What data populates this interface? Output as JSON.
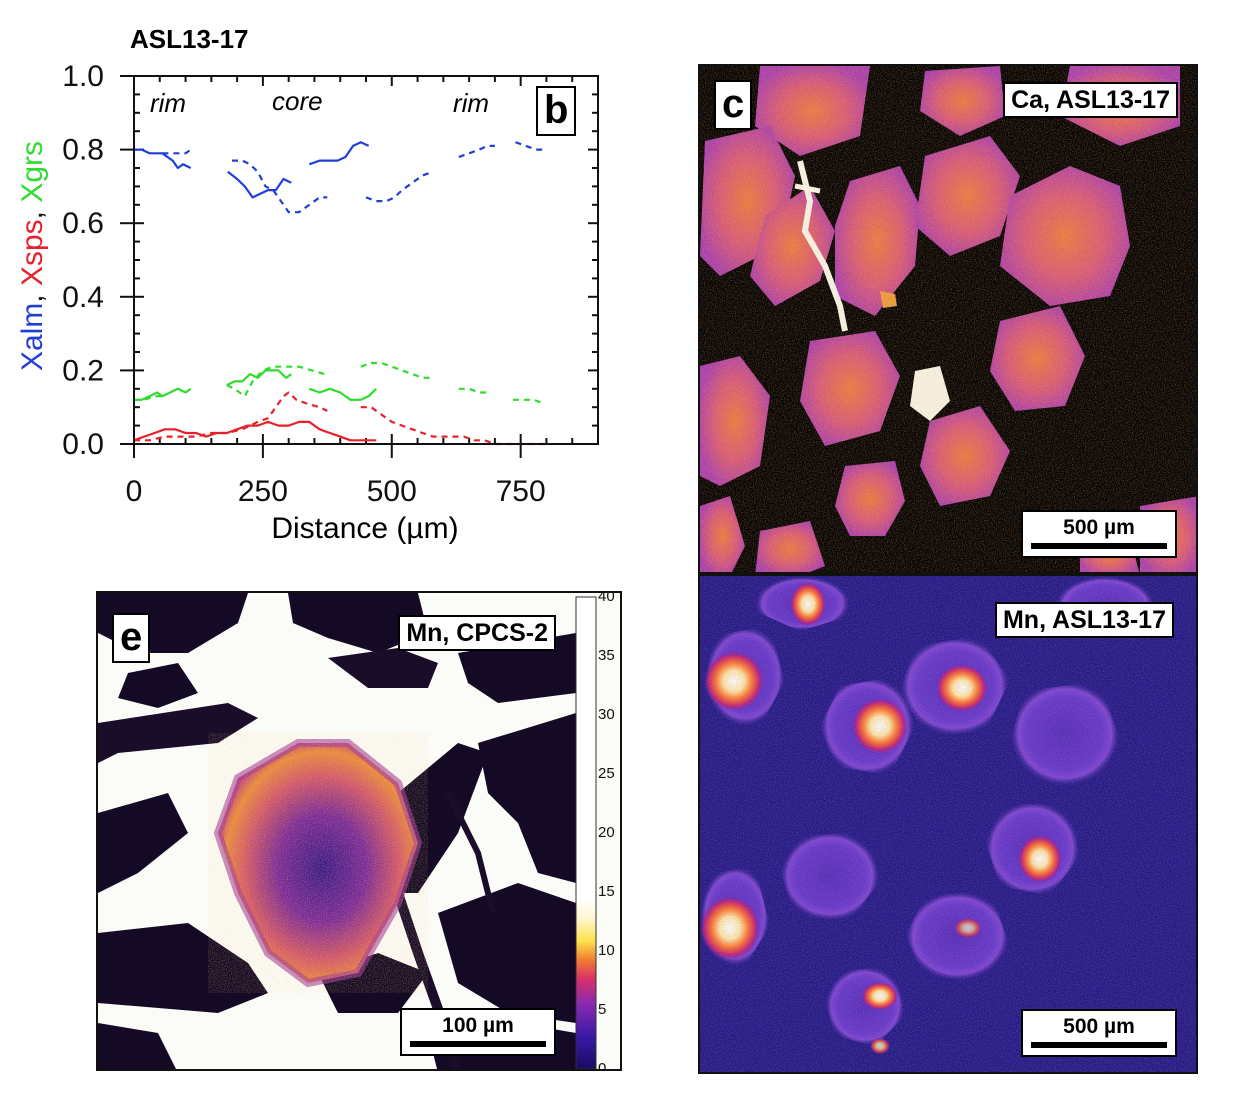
{
  "panel_b": {
    "sample_title": "ASL13-17",
    "panel_letter": "b",
    "region_labels": [
      "rim",
      "core",
      "rim"
    ],
    "ylabel_parts": [
      {
        "text": "Xalm",
        "color": "#1f3fd6"
      },
      {
        "text": ", ",
        "color": "#111111"
      },
      {
        "text": "Xsps",
        "color": "#e8202a"
      },
      {
        "text": ", ",
        "color": "#111111"
      },
      {
        "text": "Xgrs",
        "color": "#2fdc2f"
      }
    ],
    "chart_data": {
      "type": "line",
      "xlabel": "Distance (µm)",
      "xlim": [
        0,
        900
      ],
      "ylim": [
        0,
        1.0
      ],
      "xticks": [
        0,
        250,
        500,
        750
      ],
      "xtick_labels": [
        "0",
        "250",
        "500",
        "750"
      ],
      "yticks": [
        0,
        0.2,
        0.4,
        0.6,
        0.8,
        1.0
      ],
      "ytick_labels": [
        "0.0",
        "0.2",
        "0.4",
        "0.6",
        "0.8",
        "1.0"
      ],
      "series": [
        {
          "component": "alm",
          "color": "#1f3fd6",
          "dash": false,
          "segments": [
            [
              [
                0,
                0.8
              ],
              [
                15,
                0.8
              ],
              [
                30,
                0.79
              ],
              [
                45,
                0.79
              ],
              [
                55,
                0.79
              ],
              [
                65,
                0.78
              ],
              [
                75,
                0.77
              ],
              [
                85,
                0.75
              ],
              [
                95,
                0.76
              ],
              [
                110,
                0.75
              ]
            ],
            [
              [
                182,
                0.74
              ],
              [
                200,
                0.72
              ],
              [
                215,
                0.7
              ],
              [
                230,
                0.67
              ],
              [
                245,
                0.68
              ],
              [
                260,
                0.69
              ],
              [
                275,
                0.69
              ],
              [
                290,
                0.72
              ],
              [
                305,
                0.71
              ]
            ],
            [
              [
                340,
                0.76
              ],
              [
                360,
                0.77
              ],
              [
                380,
                0.77
              ],
              [
                395,
                0.77
              ],
              [
                410,
                0.78
              ],
              [
                425,
                0.81
              ],
              [
                440,
                0.82
              ],
              [
                455,
                0.81
              ]
            ]
          ]
        },
        {
          "component": "alm",
          "color": "#1f3fd6",
          "dash": true,
          "segments": [
            [
              [
                55,
                0.79
              ],
              [
                70,
                0.79
              ],
              [
                85,
                0.79
              ],
              [
                100,
                0.79
              ],
              [
                110,
                0.8
              ]
            ],
            [
              [
                190,
                0.77
              ],
              [
                210,
                0.77
              ],
              [
                225,
                0.76
              ],
              [
                240,
                0.74
              ],
              [
                255,
                0.7
              ],
              [
                270,
                0.69
              ],
              [
                285,
                0.66
              ],
              [
                300,
                0.63
              ],
              [
                320,
                0.63
              ],
              [
                340,
                0.65
              ],
              [
                360,
                0.67
              ],
              [
                375,
                0.67
              ]
            ],
            [
              [
                450,
                0.67
              ],
              [
                470,
                0.66
              ],
              [
                490,
                0.66
              ],
              [
                505,
                0.67
              ],
              [
                520,
                0.69
              ],
              [
                540,
                0.71
              ],
              [
                560,
                0.73
              ],
              [
                580,
                0.74
              ]
            ],
            [
              [
                630,
                0.78
              ],
              [
                650,
                0.79
              ],
              [
                670,
                0.8
              ],
              [
                685,
                0.81
              ],
              [
                700,
                0.81
              ]
            ],
            [
              [
                740,
                0.82
              ],
              [
                760,
                0.81
              ],
              [
                780,
                0.8
              ],
              [
                800,
                0.8
              ]
            ]
          ]
        },
        {
          "component": "grs",
          "color": "#2fdc2f",
          "dash": false,
          "segments": [
            [
              [
                0,
                0.12
              ],
              [
                15,
                0.12
              ],
              [
                30,
                0.13
              ],
              [
                45,
                0.14
              ],
              [
                55,
                0.13
              ],
              [
                70,
                0.14
              ],
              [
                85,
                0.15
              ],
              [
                100,
                0.14
              ],
              [
                110,
                0.15
              ]
            ],
            [
              [
                180,
                0.16
              ],
              [
                195,
                0.17
              ],
              [
                210,
                0.17
              ],
              [
                225,
                0.19
              ],
              [
                240,
                0.18
              ],
              [
                255,
                0.2
              ],
              [
                265,
                0.2
              ],
              [
                280,
                0.2
              ],
              [
                295,
                0.18
              ],
              [
                305,
                0.19
              ]
            ],
            [
              [
                340,
                0.15
              ],
              [
                360,
                0.14
              ],
              [
                380,
                0.15
              ],
              [
                400,
                0.14
              ],
              [
                420,
                0.12
              ],
              [
                440,
                0.12
              ],
              [
                455,
                0.13
              ],
              [
                470,
                0.15
              ]
            ]
          ]
        },
        {
          "component": "grs",
          "color": "#2fdc2f",
          "dash": true,
          "segments": [
            [
              [
                0,
                0.12
              ],
              [
                20,
                0.12
              ],
              [
                40,
                0.13
              ],
              [
                60,
                0.13
              ]
            ],
            [
              [
                180,
                0.16
              ],
              [
                195,
                0.15
              ],
              [
                215,
                0.13
              ],
              [
                230,
                0.17
              ],
              [
                250,
                0.2
              ],
              [
                270,
                0.21
              ],
              [
                290,
                0.21
              ],
              [
                320,
                0.21
              ],
              [
                345,
                0.2
              ],
              [
                370,
                0.19
              ]
            ],
            [
              [
                440,
                0.21
              ],
              [
                460,
                0.22
              ],
              [
                480,
                0.22
              ],
              [
                500,
                0.21
              ],
              [
                520,
                0.2
              ],
              [
                540,
                0.19
              ],
              [
                560,
                0.18
              ],
              [
                575,
                0.18
              ]
            ],
            [
              [
                630,
                0.15
              ],
              [
                650,
                0.15
              ],
              [
                670,
                0.14
              ],
              [
                690,
                0.14
              ]
            ],
            [
              [
                735,
                0.12
              ],
              [
                755,
                0.12
              ],
              [
                775,
                0.12
              ],
              [
                795,
                0.11
              ]
            ]
          ]
        },
        {
          "component": "sps",
          "color": "#e8202a",
          "dash": false,
          "segments": [
            [
              [
                0,
                0.01
              ],
              [
                20,
                0.02
              ],
              [
                40,
                0.03
              ],
              [
                60,
                0.04
              ],
              [
                80,
                0.04
              ],
              [
                100,
                0.03
              ],
              [
                120,
                0.03
              ],
              [
                140,
                0.02
              ],
              [
                160,
                0.03
              ],
              [
                180,
                0.03
              ],
              [
                200,
                0.04
              ],
              [
                220,
                0.05
              ],
              [
                240,
                0.05
              ],
              [
                260,
                0.06
              ],
              [
                280,
                0.05
              ],
              [
                300,
                0.05
              ],
              [
                320,
                0.06
              ],
              [
                340,
                0.06
              ],
              [
                360,
                0.04
              ],
              [
                380,
                0.03
              ],
              [
                400,
                0.02
              ],
              [
                420,
                0.01
              ],
              [
                440,
                0.01
              ],
              [
                460,
                0.01
              ],
              [
                470,
                0.01
              ]
            ]
          ]
        },
        {
          "component": "sps",
          "color": "#e8202a",
          "dash": true,
          "segments": [
            [
              [
                0,
                0.01
              ],
              [
                30,
                0.01
              ],
              [
                60,
                0.02
              ],
              [
                90,
                0.02
              ],
              [
                120,
                0.02
              ],
              [
                150,
                0.03
              ],
              [
                180,
                0.03
              ],
              [
                210,
                0.04
              ],
              [
                240,
                0.06
              ],
              [
                260,
                0.07
              ],
              [
                275,
                0.1
              ],
              [
                290,
                0.13
              ],
              [
                300,
                0.14
              ],
              [
                315,
                0.12
              ],
              [
                335,
                0.11
              ],
              [
                360,
                0.1
              ],
              [
                375,
                0.09
              ]
            ],
            [
              [
                440,
                0.1
              ],
              [
                460,
                0.1
              ],
              [
                480,
                0.08
              ],
              [
                500,
                0.06
              ],
              [
                520,
                0.05
              ],
              [
                540,
                0.04
              ],
              [
                560,
                0.03
              ],
              [
                580,
                0.02
              ],
              [
                600,
                0.02
              ],
              [
                620,
                0.02
              ],
              [
                640,
                0.02
              ],
              [
                660,
                0.01
              ],
              [
                680,
                0.01
              ],
              [
                700,
                0.0
              ],
              [
                720,
                0.0
              ],
              [
                740,
                0.0
              ],
              [
                760,
                0.0
              ],
              [
                780,
                0.0
              ],
              [
                800,
                0.0
              ]
            ]
          ]
        }
      ]
    }
  },
  "panel_c": {
    "letter": "c",
    "label": "Ca, ASL13-17",
    "scale": "500 µm"
  },
  "panel_d": {
    "label": "Mn, ASL13-17",
    "scale": "500 µm"
  },
  "panel_e": {
    "letter": "e",
    "label": "Mn, CPCS-2",
    "scale": "100 µm",
    "colorbar": {
      "min": 0,
      "max": 40,
      "tick_labels": [
        "40",
        "35",
        "30",
        "25",
        "20",
        "15",
        "10",
        "5",
        "0"
      ]
    }
  }
}
